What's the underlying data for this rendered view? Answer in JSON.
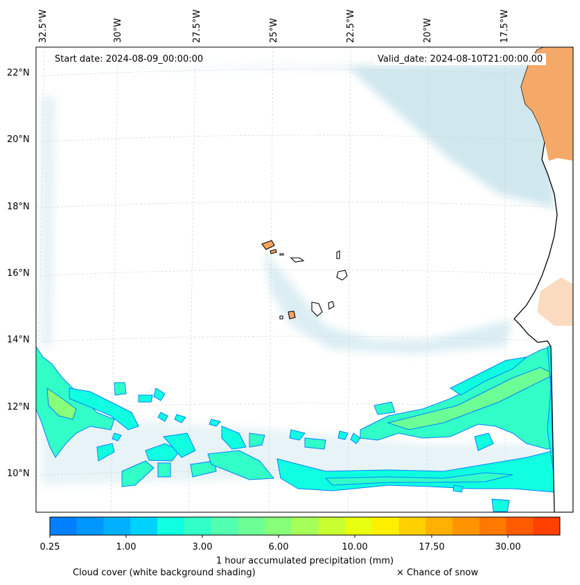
{
  "map": {
    "start_date": "Start date: 2024-08-09_00:00:00",
    "valid_date": "Valid_date: 2024-08-10T21:00:00.00",
    "lon_labels": [
      "32.5°W",
      "30°W",
      "27.5°W",
      "25°W",
      "22.5°W",
      "20°W",
      "17.5°W"
    ],
    "lat_labels": [
      "22°N",
      "20°N",
      "18°N",
      "16°N",
      "14°N",
      "12°N",
      "10°N"
    ],
    "colors": {
      "land": "#f4a460",
      "coast": "#000000",
      "cloud_tint": "#a8d4e0",
      "grid": "#c8c8c8"
    }
  },
  "colorbar": {
    "tick_labels": [
      "0.25",
      "1.00",
      "3.00",
      "6.00",
      "10.00",
      "17.50",
      "30.00"
    ],
    "colors": [
      "#0080ff",
      "#0096ff",
      "#00b0ff",
      "#00d2ff",
      "#10ffe0",
      "#32ffc8",
      "#50ffb0",
      "#6cff96",
      "#88ff78",
      "#a6ff58",
      "#c8ff30",
      "#e8ff10",
      "#fff000",
      "#ffd000",
      "#ffb000",
      "#ff9400",
      "#ff7800",
      "#ff5a00",
      "#ff4000"
    ],
    "title": "1 hour accumulated precipitation (mm)"
  },
  "legend": {
    "cloud_cover": "Cloud cover (white background shading)",
    "snow": "× Chance of snow"
  }
}
